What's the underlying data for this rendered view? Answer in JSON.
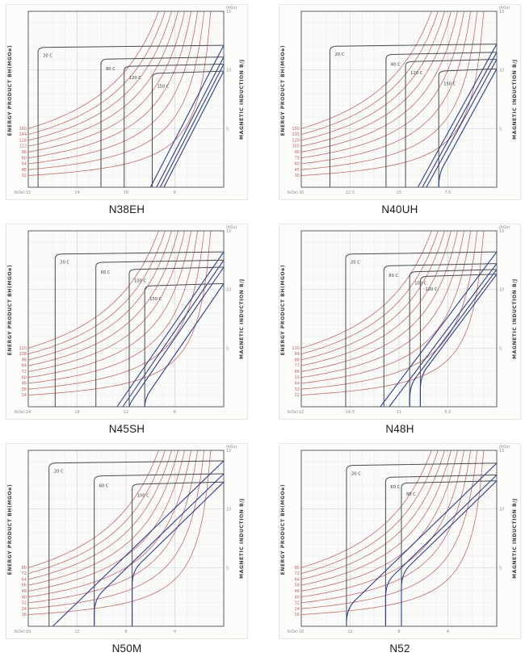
{
  "chart_data": [
    {
      "type": "line",
      "title": "N38EH",
      "x_axis": {
        "unit": "(kOe)",
        "ticks": [
          "32",
          "24",
          "16",
          "8"
        ],
        "max": 32,
        "note": "demagnetizing field H, 0 at right edge"
      },
      "y_axis_right": {
        "label": "MAGNETIC INDUCTION B/J",
        "unit": "(kGs)",
        "ticks": [
          "15",
          "10",
          "5"
        ],
        "max": 15
      },
      "y_axis_left": {
        "label": "ENERGY PRODUCT BH(MGOe)"
      },
      "bh_contours": [
        160,
        144,
        128,
        112,
        96,
        80,
        64,
        48,
        32
      ],
      "series": [
        {
          "name": "20 C",
          "hcj_kOe": 30.4,
          "br_kGs": 12.0
        },
        {
          "name": "80 C",
          "hcj_kOe": 20.1,
          "br_kGs": 11.0
        },
        {
          "name": "120 C",
          "hcj_kOe": 16.3,
          "br_kGs": 10.4
        },
        {
          "name": "150 C",
          "hcj_kOe": 11.7,
          "br_kGs": 9.8
        }
      ]
    },
    {
      "type": "line",
      "title": "N40UH",
      "x_axis": {
        "unit": "(kOe)",
        "ticks": [
          "30",
          "22.5",
          "15",
          "7.5"
        ],
        "max": 30,
        "note": "demagnetizing field H, 0 at right edge"
      },
      "y_axis_right": {
        "label": "MAGNETIC INDUCTION B/J",
        "unit": "(kGs)",
        "ticks": [
          "15",
          "10",
          "5"
        ],
        "max": 15
      },
      "y_axis_left": {
        "label": "ENERGY PRODUCT BH(MGOe)"
      },
      "bh_contours": [
        150,
        135,
        120,
        105,
        90,
        75,
        60,
        45,
        30
      ],
      "series": [
        {
          "name": "20 C",
          "hcj_kOe": 25.6,
          "br_kGs": 12.1
        },
        {
          "name": "80 C",
          "hcj_kOe": 17.0,
          "br_kGs": 11.4
        },
        {
          "name": "120 C",
          "hcj_kOe": 14.0,
          "br_kGs": 10.8
        },
        {
          "name": "150 C",
          "hcj_kOe": 8.9,
          "br_kGs": 10.0
        }
      ]
    },
    {
      "type": "line",
      "title": "N45SH",
      "x_axis": {
        "unit": "(kOe)",
        "ticks": [
          "24",
          "18",
          "12",
          "6"
        ],
        "max": 24,
        "note": "demagnetizing field H, 0 at right edge"
      },
      "y_axis_right": {
        "label": "MAGNETIC INDUCTION B/J",
        "unit": "(kGs)",
        "ticks": [
          "15",
          "10",
          "5"
        ],
        "max": 15
      },
      "y_axis_left": {
        "label": "ENERGY PRODUCT BH(MGOe)"
      },
      "bh_contours": [
        120,
        108,
        96,
        84,
        72,
        60,
        48,
        36,
        24
      ],
      "series": [
        {
          "name": "20 C",
          "hcj_kOe": 20.7,
          "br_kGs": 13.1
        },
        {
          "name": "60 C",
          "hcj_kOe": 15.7,
          "br_kGs": 12.4
        },
        {
          "name": "100 C",
          "hcj_kOe": 11.6,
          "br_kGs": 11.8
        },
        {
          "name": "150 C",
          "hcj_kOe": 9.7,
          "br_kGs": 10.4
        }
      ]
    },
    {
      "type": "line",
      "title": "N48H",
      "x_axis": {
        "unit": "(kOe)",
        "ticks": [
          "22",
          "16.5",
          "11",
          "5.5"
        ],
        "max": 22,
        "note": "demagnetizing field H, 0 at right edge"
      },
      "y_axis_right": {
        "label": "MAGNETIC INDUCTION B/J",
        "unit": "(kGs)",
        "ticks": [
          "15",
          "10",
          "5"
        ],
        "max": 15
      },
      "y_axis_left": {
        "label": "ENERGY PRODUCT BH(MGOe)"
      },
      "bh_contours": [
        110,
        99,
        88,
        77,
        66,
        55,
        44,
        33,
        22
      ],
      "series": [
        {
          "name": "20 C",
          "hcj_kOe": 17.0,
          "br_kGs": 13.1
        },
        {
          "name": "80 C",
          "hcj_kOe": 12.7,
          "br_kGs": 12.1
        },
        {
          "name": "100 C",
          "hcj_kOe": 9.8,
          "br_kGs": 11.6
        },
        {
          "name": "120 C",
          "hcj_kOe": 8.6,
          "br_kGs": 11.2
        }
      ]
    },
    {
      "type": "line",
      "title": "N50M",
      "x_axis": {
        "unit": "(kOe)",
        "ticks": [
          "16",
          "12",
          "8",
          "4"
        ],
        "max": 16,
        "note": "demagnetizing field H, 0 at right edge"
      },
      "y_axis_right": {
        "label": "MAGNETIC INDUCTION B/J",
        "unit": "(kGs)",
        "ticks": [
          "15",
          "10",
          "5"
        ],
        "max": 15
      },
      "y_axis_left": {
        "label": "ENERGY PRODUCT BH(MGOe)"
      },
      "bh_contours": [
        80,
        72,
        64,
        56,
        48,
        40,
        32,
        24,
        16
      ],
      "series": [
        {
          "name": "20 C",
          "hcj_kOe": 14.3,
          "br_kGs": 14.0
        },
        {
          "name": "60 C",
          "hcj_kOe": 10.6,
          "br_kGs": 12.9
        },
        {
          "name": "100 C",
          "hcj_kOe": 7.5,
          "br_kGs": 12.2
        }
      ]
    },
    {
      "type": "line",
      "title": "N52",
      "x_axis": {
        "unit": "(kOe)",
        "ticks": [
          "16",
          "12",
          "8",
          "4"
        ],
        "max": 16,
        "note": "demagnetizing field H, 0 at right edge"
      },
      "y_axis_right": {
        "label": "MAGNETIC INDUCTION B/J",
        "unit": "(kGs)",
        "ticks": [
          "15",
          "10",
          "5"
        ],
        "max": 15
      },
      "y_axis_left": {
        "label": "ENERGY PRODUCT BH(MGOe)"
      },
      "bh_contours": [
        80,
        72,
        64,
        56,
        48,
        40,
        32,
        24,
        16
      ],
      "series": [
        {
          "name": "20 C",
          "hcj_kOe": 12.3,
          "br_kGs": 13.8
        },
        {
          "name": "60 C",
          "hcj_kOe": 9.1,
          "br_kGs": 12.8
        },
        {
          "name": "80 C",
          "hcj_kOe": 7.8,
          "br_kGs": 12.3
        }
      ]
    }
  ],
  "colors": {
    "bh_contour": "#c26a68",
    "bh_label": "#c0605e",
    "normal_curve_blue": "#2c3c8e",
    "intrinsic_curve_dark": "#474b4d",
    "frame": "#5a5f63",
    "grid_minor": "#e6e9ee",
    "grid_major": "#d2d8e2",
    "tick_text": "#8a8f96",
    "axis_title": "#3c4042",
    "paper": "#fcfcfa",
    "plot_bg": "#fafbf9"
  }
}
